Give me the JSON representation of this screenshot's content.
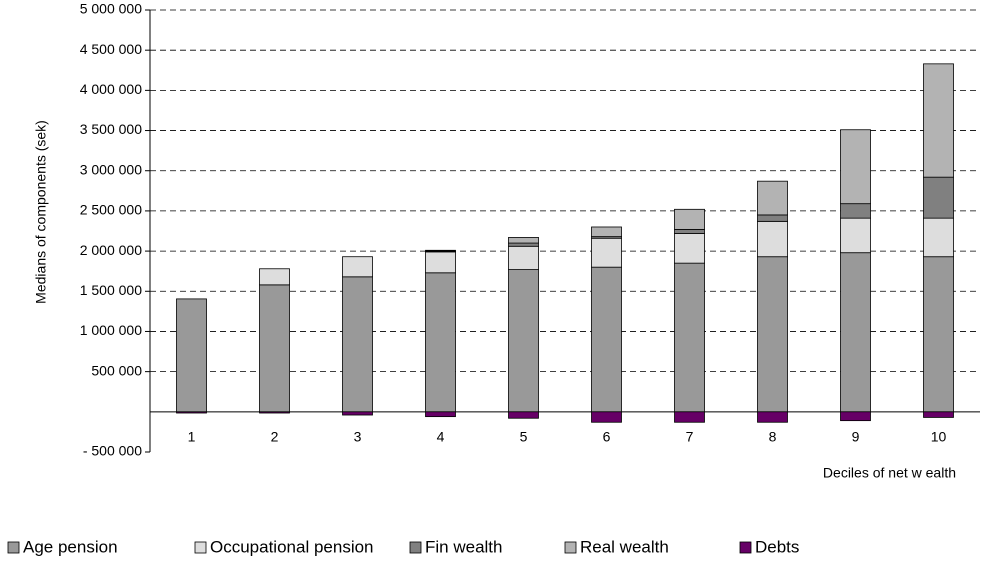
{
  "chart_data": {
    "type": "stacked_bar",
    "y_label": "Medians of components (sek)",
    "x_label": "Deciles of net w ealth",
    "categories": [
      "1",
      "2",
      "3",
      "4",
      "5",
      "6",
      "7",
      "8",
      "9",
      "10"
    ],
    "series": [
      {
        "name": "Age pension",
        "color": "#999999",
        "values": [
          1405000,
          1580000,
          1680000,
          1730000,
          1770000,
          1800000,
          1850000,
          1930000,
          1980000,
          1930000
        ]
      },
      {
        "name": "Occupational pension",
        "color": "#dddddd",
        "values": [
          0,
          200000,
          250000,
          260000,
          290000,
          360000,
          370000,
          440000,
          430000,
          480000
        ]
      },
      {
        "name": "Fin wealth",
        "color": "#808080",
        "values": [
          0,
          0,
          0,
          10000,
          40000,
          20000,
          50000,
          80000,
          180000,
          510000
        ]
      },
      {
        "name": "Real wealth",
        "color": "#b3b3b3",
        "values": [
          0,
          0,
          0,
          10000,
          70000,
          120000,
          250000,
          420000,
          920000,
          1410000
        ]
      },
      {
        "name": "Debts",
        "color": "#660066",
        "values": [
          -15000,
          -15000,
          -40000,
          -60000,
          -80000,
          -130000,
          -130000,
          -130000,
          -110000,
          -70000
        ]
      }
    ],
    "ylim": [
      -500000,
      5000000
    ],
    "yticks": [
      {
        "value": -500000,
        "label": "- 500 000"
      },
      {
        "value": 500000,
        "label": "500 000"
      },
      {
        "value": 1000000,
        "label": "1 000 000"
      },
      {
        "value": 1500000,
        "label": "1 500 000"
      },
      {
        "value": 2000000,
        "label": "2 000 000"
      },
      {
        "value": 2500000,
        "label": "2 500 000"
      },
      {
        "value": 3000000,
        "label": "3 000 000"
      },
      {
        "value": 3500000,
        "label": "3 500 000"
      },
      {
        "value": 4000000,
        "label": "4 000 000"
      },
      {
        "value": 4500000,
        "label": "4 500 000"
      },
      {
        "value": 5000000,
        "label": "5 000 000"
      }
    ],
    "grid": true
  }
}
